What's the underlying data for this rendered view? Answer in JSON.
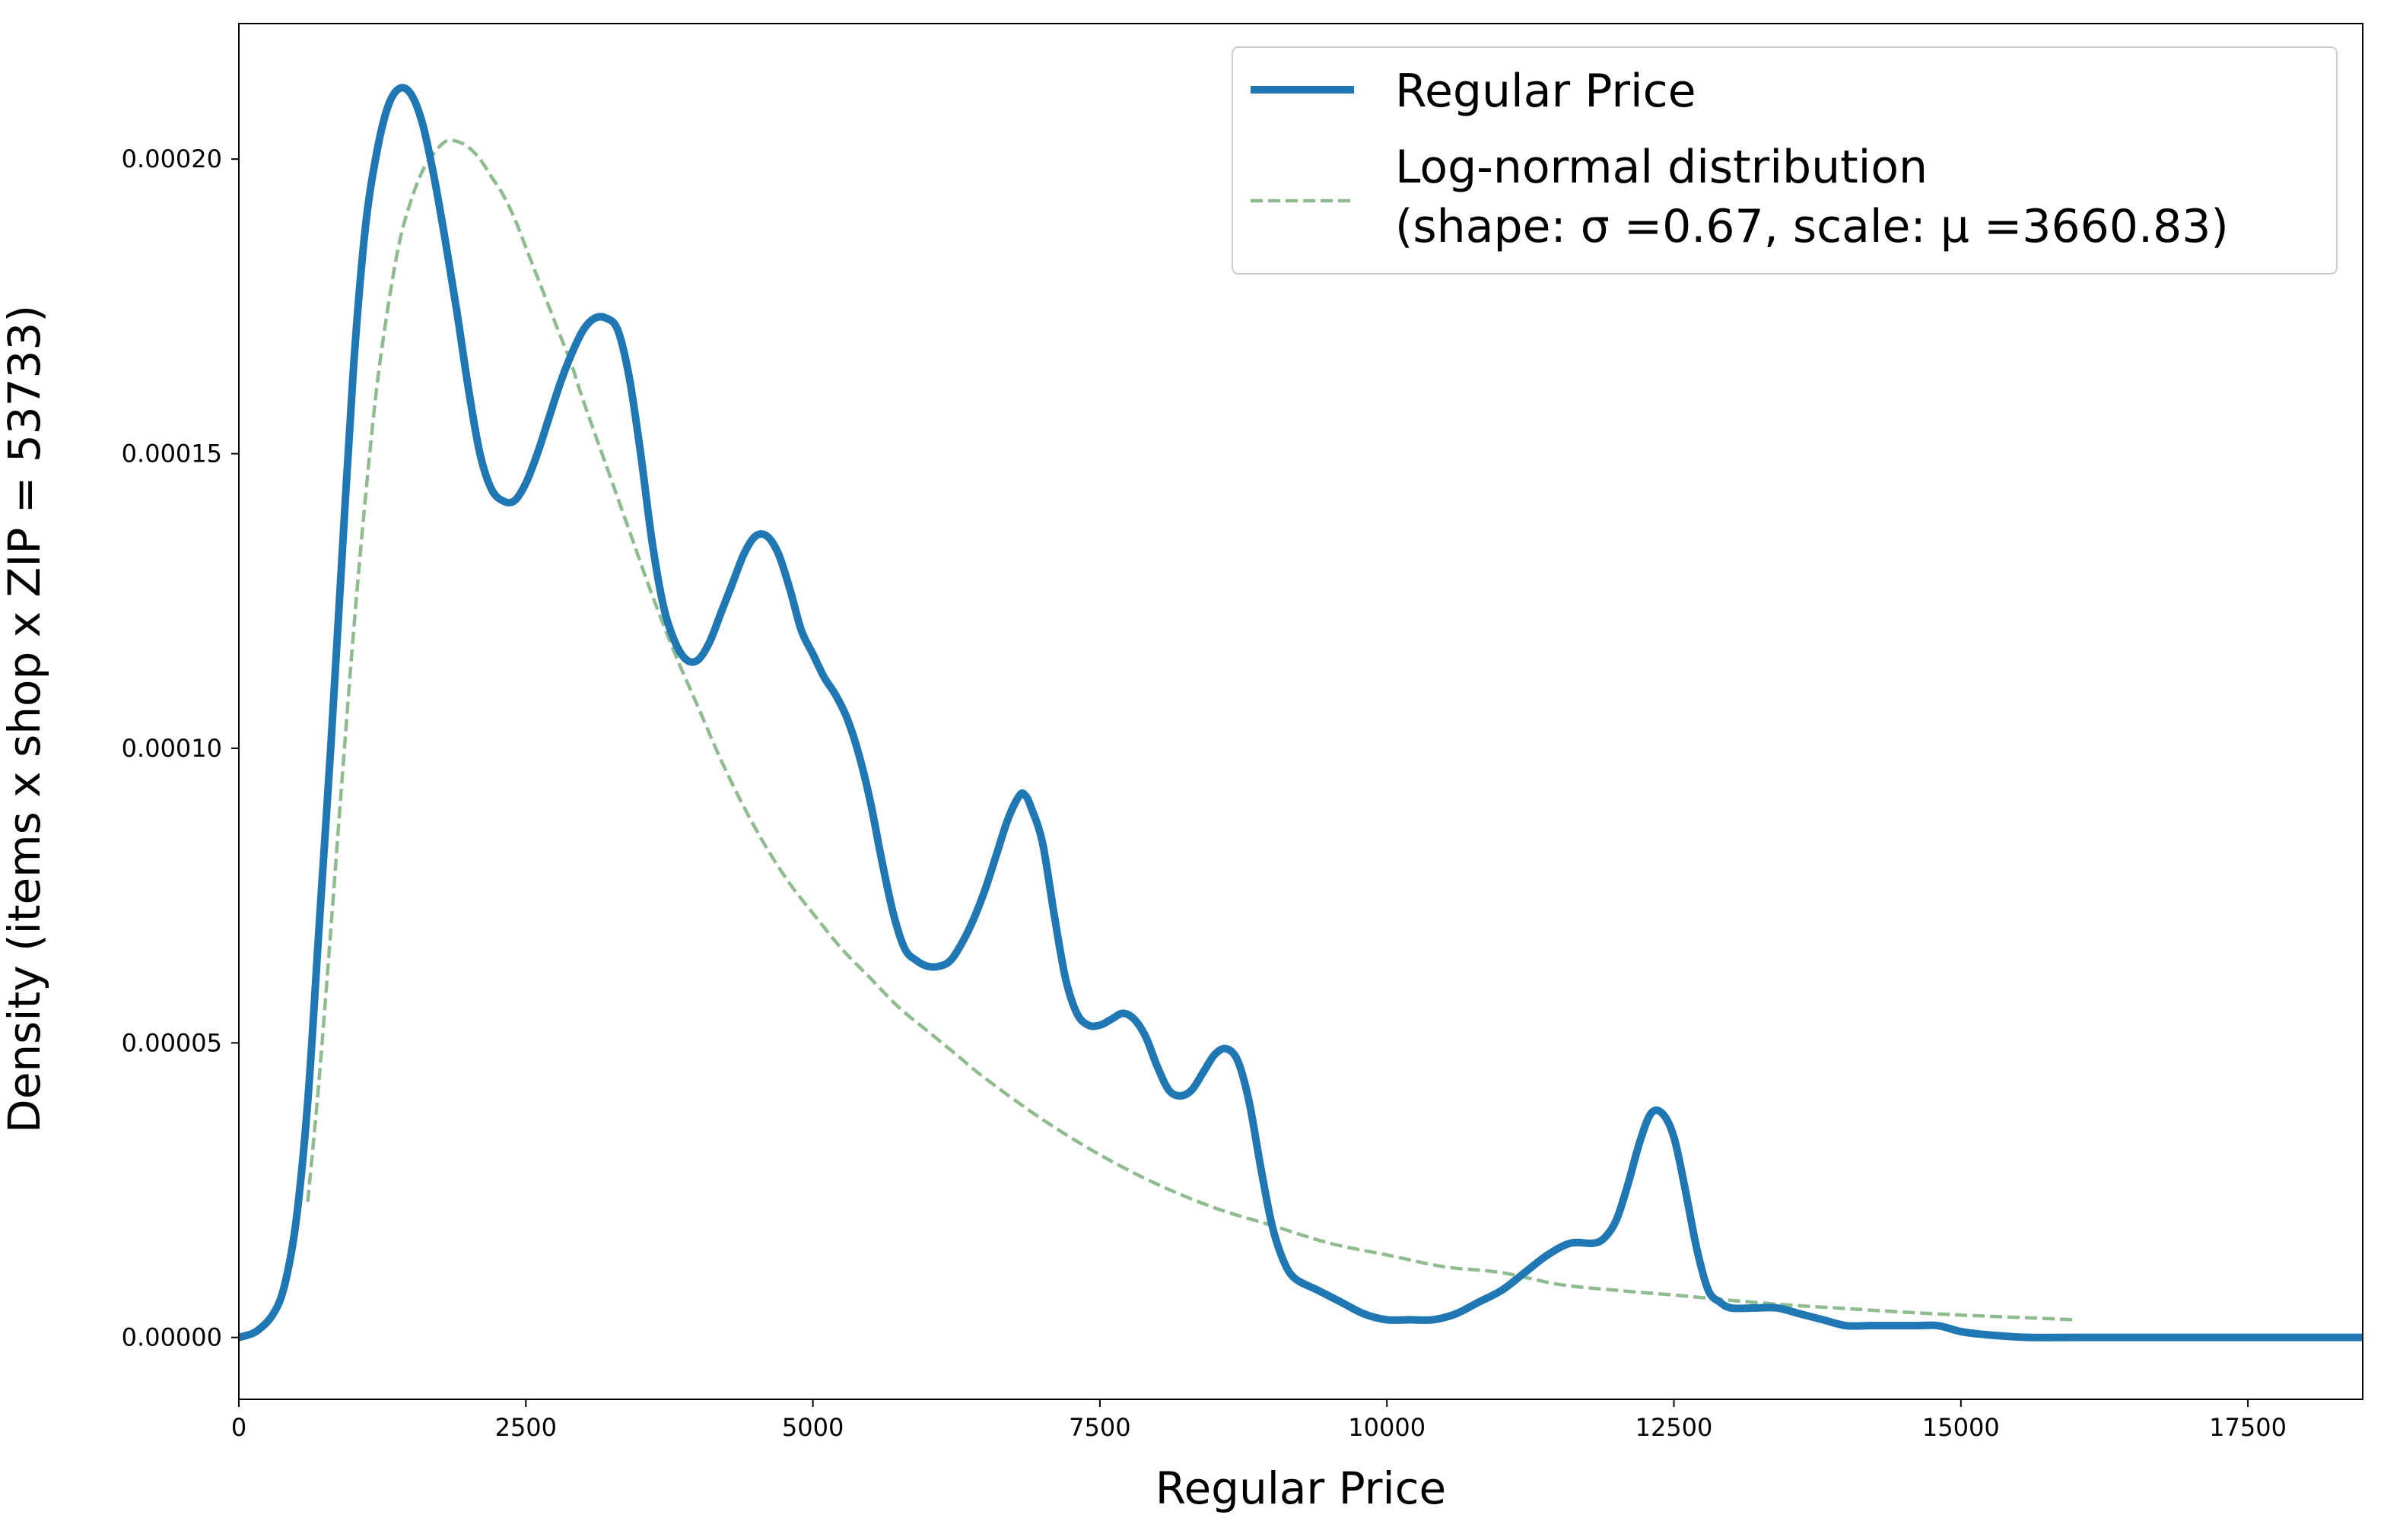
{
  "chart_data": {
    "type": "line",
    "title": "",
    "xlabel": "Regular Price",
    "ylabel": "Density (items x shop x ZIP = 53733)",
    "xlim": [
      0,
      18500
    ],
    "ylim": [
      -1.05e-05,
      0.000223
    ],
    "x_ticks": [
      0,
      2500,
      5000,
      7500,
      10000,
      12500,
      15000,
      17500
    ],
    "x_tick_labels": [
      "0",
      "2500",
      "5000",
      "7500",
      "10000",
      "12500",
      "15000",
      "17500"
    ],
    "y_ticks": [
      0,
      5e-05,
      0.0001,
      0.00015,
      0.0002
    ],
    "y_tick_labels": [
      "0.00000",
      "0.00005",
      "0.00010",
      "0.00015",
      "0.00020"
    ],
    "grid": false,
    "legend_position": "top-right",
    "series": [
      {
        "name": "Regular Price",
        "color": "#1f77b4",
        "style": "solid",
        "points": [
          [
            0,
            0.0
          ],
          [
            150,
            1e-06
          ],
          [
            300,
            4e-06
          ],
          [
            400,
            9e-06
          ],
          [
            500,
            2e-05
          ],
          [
            600,
            4e-05
          ],
          [
            700,
            7e-05
          ],
          [
            800,
            0.0001
          ],
          [
            900,
            0.000133
          ],
          [
            1000,
            0.000165
          ],
          [
            1100,
            0.000188
          ],
          [
            1200,
            0.000201
          ],
          [
            1300,
            0.000209
          ],
          [
            1400,
            0.000212
          ],
          [
            1500,
            0.000211
          ],
          [
            1600,
            0.000206
          ],
          [
            1700,
            0.000197
          ],
          [
            1800,
            0.000186
          ],
          [
            1900,
            0.000174
          ],
          [
            2000,
            0.000161
          ],
          [
            2100,
            0.00015
          ],
          [
            2200,
            0.000144
          ],
          [
            2300,
            0.000142
          ],
          [
            2400,
            0.000142
          ],
          [
            2500,
            0.000145
          ],
          [
            2600,
            0.00015
          ],
          [
            2700,
            0.000156
          ],
          [
            2800,
            0.000162
          ],
          [
            2900,
            0.000167
          ],
          [
            3000,
            0.000171
          ],
          [
            3100,
            0.000173
          ],
          [
            3200,
            0.000173
          ],
          [
            3300,
            0.000171
          ],
          [
            3400,
            0.000163
          ],
          [
            3500,
            0.00015
          ],
          [
            3600,
            0.000135
          ],
          [
            3700,
            0.000124
          ],
          [
            3800,
            0.000118
          ],
          [
            3900,
            0.000115
          ],
          [
            4000,
            0.000115
          ],
          [
            4100,
            0.000118
          ],
          [
            4200,
            0.000123
          ],
          [
            4300,
            0.000128
          ],
          [
            4400,
            0.000133
          ],
          [
            4500,
            0.000136
          ],
          [
            4600,
            0.000136
          ],
          [
            4700,
            0.000133
          ],
          [
            4800,
            0.000127
          ],
          [
            4900,
            0.00012
          ],
          [
            5000,
            0.000116
          ],
          [
            5100,
            0.000112
          ],
          [
            5200,
            0.000109
          ],
          [
            5300,
            0.000105
          ],
          [
            5400,
            9.9e-05
          ],
          [
            5500,
            9.1e-05
          ],
          [
            5600,
            8.1e-05
          ],
          [
            5700,
            7.2e-05
          ],
          [
            5800,
            6.6e-05
          ],
          [
            5900,
            6.4e-05
          ],
          [
            6000,
            6.3e-05
          ],
          [
            6100,
            6.3e-05
          ],
          [
            6200,
            6.4e-05
          ],
          [
            6300,
            6.7e-05
          ],
          [
            6400,
            7.1e-05
          ],
          [
            6500,
            7.6e-05
          ],
          [
            6600,
            8.2e-05
          ],
          [
            6700,
            8.8e-05
          ],
          [
            6800,
            9.2e-05
          ],
          [
            6850,
            9.2e-05
          ],
          [
            6900,
            9e-05
          ],
          [
            7000,
            8.4e-05
          ],
          [
            7100,
            7.2e-05
          ],
          [
            7200,
            6.1e-05
          ],
          [
            7300,
            5.5e-05
          ],
          [
            7400,
            5.3e-05
          ],
          [
            7500,
            5.3e-05
          ],
          [
            7600,
            5.4e-05
          ],
          [
            7700,
            5.5e-05
          ],
          [
            7800,
            5.4e-05
          ],
          [
            7900,
            5.1e-05
          ],
          [
            8000,
            4.6e-05
          ],
          [
            8100,
            4.2e-05
          ],
          [
            8200,
            4.1e-05
          ],
          [
            8300,
            4.2e-05
          ],
          [
            8400,
            4.5e-05
          ],
          [
            8500,
            4.8e-05
          ],
          [
            8600,
            4.9e-05
          ],
          [
            8700,
            4.7e-05
          ],
          [
            8800,
            4e-05
          ],
          [
            8900,
            2.9e-05
          ],
          [
            9000,
            1.9e-05
          ],
          [
            9100,
            1.3e-05
          ],
          [
            9200,
            1e-05
          ],
          [
            9400,
            8e-06
          ],
          [
            9600,
            6e-06
          ],
          [
            9800,
            4e-06
          ],
          [
            10000,
            3e-06
          ],
          [
            10200,
            3e-06
          ],
          [
            10400,
            3e-06
          ],
          [
            10600,
            4e-06
          ],
          [
            10800,
            6e-06
          ],
          [
            11000,
            8e-06
          ],
          [
            11200,
            1.1e-05
          ],
          [
            11400,
            1.4e-05
          ],
          [
            11600,
            1.6e-05
          ],
          [
            11800,
            1.6e-05
          ],
          [
            11900,
            1.7e-05
          ],
          [
            12000,
            2e-05
          ],
          [
            12100,
            2.6e-05
          ],
          [
            12200,
            3.3e-05
          ],
          [
            12300,
            3.8e-05
          ],
          [
            12400,
            3.8e-05
          ],
          [
            12500,
            3.4e-05
          ],
          [
            12600,
            2.5e-05
          ],
          [
            12700,
            1.5e-05
          ],
          [
            12800,
            8e-06
          ],
          [
            12900,
            6e-06
          ],
          [
            13000,
            5e-06
          ],
          [
            13200,
            5e-06
          ],
          [
            13400,
            5e-06
          ],
          [
            13600,
            4e-06
          ],
          [
            13800,
            3e-06
          ],
          [
            14000,
            2e-06
          ],
          [
            14200,
            2e-06
          ],
          [
            14400,
            2e-06
          ],
          [
            14600,
            2e-06
          ],
          [
            14800,
            2e-06
          ],
          [
            15000,
            1e-06
          ],
          [
            15200,
            5e-07
          ],
          [
            15400,
            2e-07
          ],
          [
            15600,
            0.0
          ],
          [
            16000,
            0.0
          ],
          [
            17000,
            0.0
          ],
          [
            18500,
            0.0
          ]
        ]
      },
      {
        "name": "Log-normal distribution",
        "name_line2": "(shape: σ =0.67, scale: μ =3660.83)",
        "color": "#8fbc8f",
        "style": "dashed",
        "points": [
          [
            600,
            2.3e-05
          ],
          [
            700,
            4.4e-05
          ],
          [
            800,
            6.9e-05
          ],
          [
            900,
            9.5e-05
          ],
          [
            1000,
            0.00012
          ],
          [
            1100,
            0.000142
          ],
          [
            1200,
            0.000161
          ],
          [
            1300,
            0.000175
          ],
          [
            1400,
            0.000186
          ],
          [
            1500,
            0.000193
          ],
          [
            1600,
            0.000198
          ],
          [
            1700,
            0.000201
          ],
          [
            1800,
            0.000203
          ],
          [
            1900,
            0.000203
          ],
          [
            2000,
            0.000202
          ],
          [
            2100,
            0.0002
          ],
          [
            2200,
            0.000197
          ],
          [
            2300,
            0.000194
          ],
          [
            2400,
            0.00019
          ],
          [
            2500,
            0.000185
          ],
          [
            2600,
            0.00018
          ],
          [
            2700,
            0.000175
          ],
          [
            2800,
            0.00017
          ],
          [
            2900,
            0.000165
          ],
          [
            3000,
            0.000159
          ],
          [
            3200,
            0.000148
          ],
          [
            3400,
            0.000137
          ],
          [
            3600,
            0.000126
          ],
          [
            3800,
            0.000116
          ],
          [
            4000,
            0.000107
          ],
          [
            4200,
            9.8e-05
          ],
          [
            4400,
            9e-05
          ],
          [
            4600,
            8.3e-05
          ],
          [
            4800,
            7.7e-05
          ],
          [
            5000,
            7.2e-05
          ],
          [
            5250,
            6.6e-05
          ],
          [
            5500,
            6.1e-05
          ],
          [
            5750,
            5.6e-05
          ],
          [
            6000,
            5.2e-05
          ],
          [
            6250,
            4.8e-05
          ],
          [
            6500,
            4.4e-05
          ],
          [
            7000,
            3.7e-05
          ],
          [
            7500,
            3.1e-05
          ],
          [
            8000,
            2.6e-05
          ],
          [
            8500,
            2.2e-05
          ],
          [
            9000,
            1.9e-05
          ],
          [
            9500,
            1.6e-05
          ],
          [
            10000,
            1.4e-05
          ],
          [
            10500,
            1.2e-05
          ],
          [
            11000,
            1.1e-05
          ],
          [
            11500,
            9e-06
          ],
          [
            12000,
            8e-06
          ],
          [
            12500,
            7.2e-06
          ],
          [
            13000,
            6.3e-06
          ],
          [
            13500,
            5.5e-06
          ],
          [
            14000,
            4.9e-06
          ],
          [
            14500,
            4.3e-06
          ],
          [
            15000,
            3.8e-06
          ],
          [
            15500,
            3.4e-06
          ],
          [
            16000,
            3e-06
          ]
        ]
      }
    ]
  }
}
